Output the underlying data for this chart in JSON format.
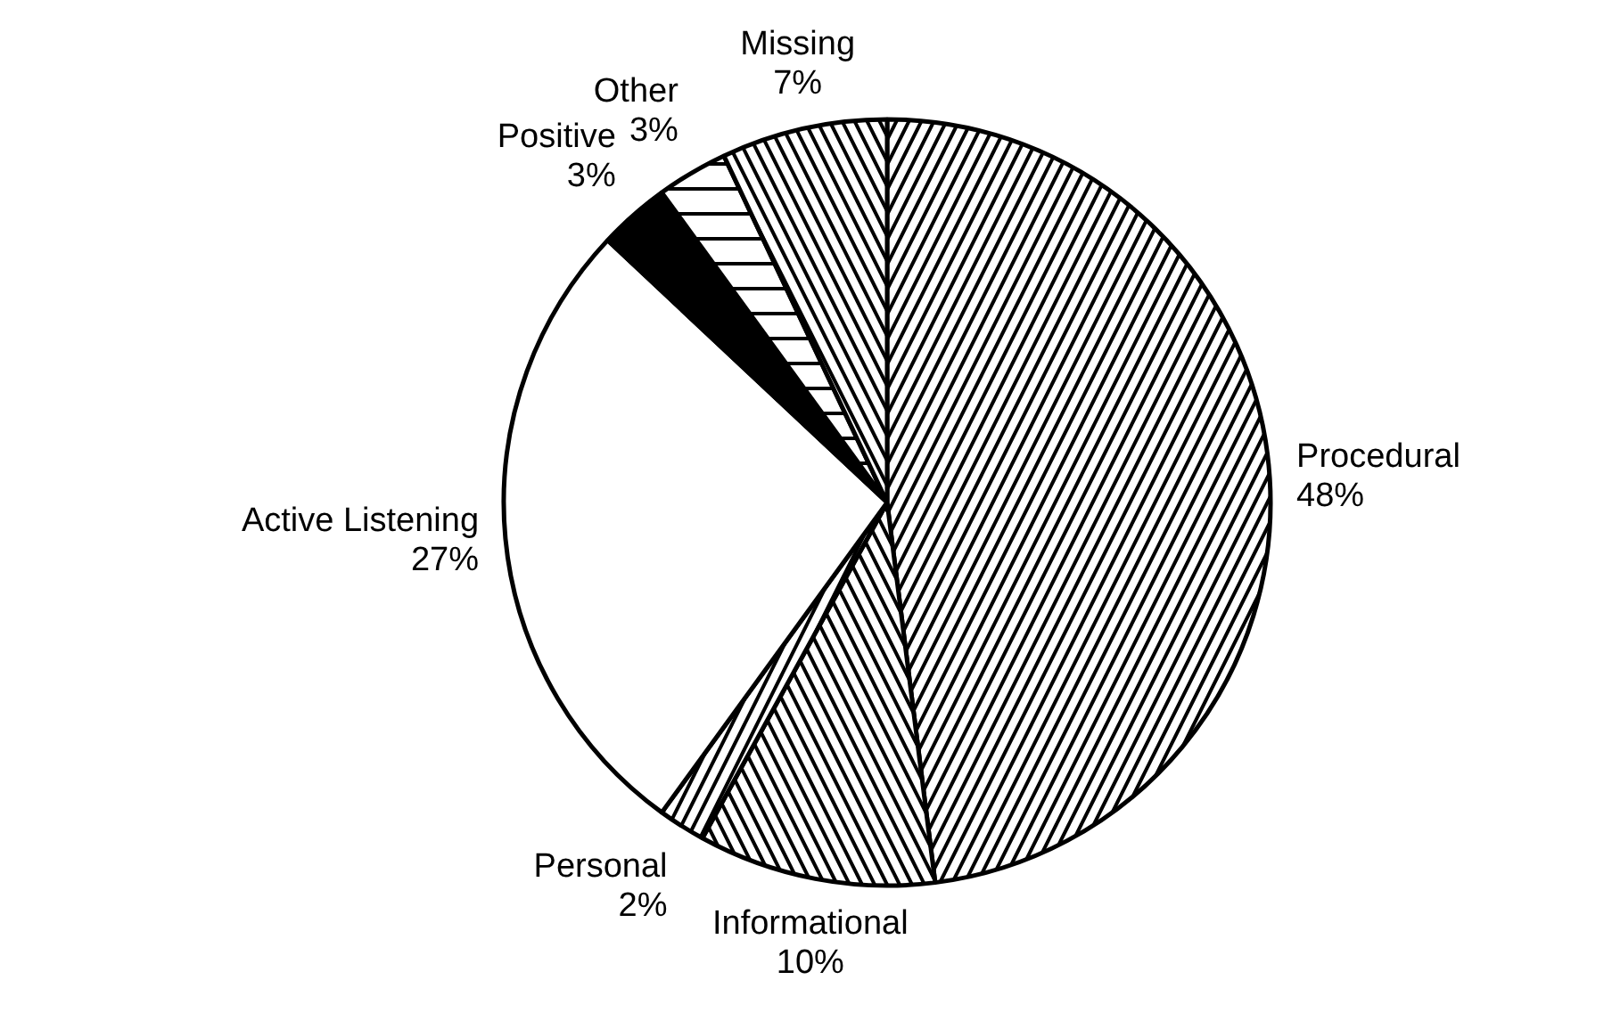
{
  "chart_data": {
    "type": "pie",
    "categories": [
      "Procedural",
      "Informational",
      "Personal",
      "Active Listening",
      "Positive",
      "Other",
      "Missing"
    ],
    "values": [
      48,
      10,
      2,
      27,
      3,
      3,
      7
    ],
    "value_labels": [
      "48%",
      "10%",
      "2%",
      "27%",
      "3%",
      "3%",
      "7%"
    ],
    "colors": [
      "#ffffff",
      "#ffffff",
      "#ffffff",
      "#ffffff",
      "#000000",
      "#ffffff",
      "#ffffff"
    ]
  }
}
